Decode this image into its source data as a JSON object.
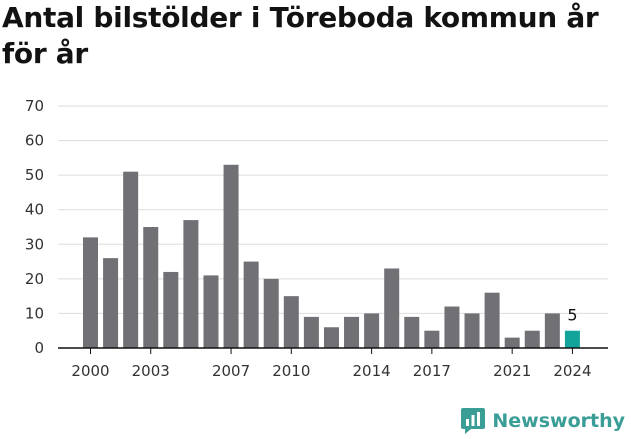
{
  "title": "Antal bilstölder i Töreboda kommun år för år",
  "brand": {
    "name": "Newsworthy",
    "logo_icon": "newsworthy-chart-bubble-icon",
    "color": "#3a9e97"
  },
  "colors": {
    "bar": "#717075",
    "highlight": "#12a39a",
    "grid": "#dddddd",
    "axis": "#121212"
  },
  "chart_data": {
    "type": "bar",
    "title": "Antal bilstölder i Töreboda kommun år för år",
    "xlabel": "",
    "ylabel": "",
    "ylim": [
      0,
      70
    ],
    "yticks": [
      0,
      10,
      20,
      30,
      40,
      50,
      60,
      70
    ],
    "grid": true,
    "categories": [
      2000,
      2001,
      2002,
      2003,
      2004,
      2005,
      2006,
      2007,
      2008,
      2009,
      2010,
      2011,
      2012,
      2013,
      2014,
      2015,
      2016,
      2017,
      2018,
      2019,
      2020,
      2021,
      2022,
      2023,
      2024
    ],
    "values": [
      32,
      26,
      51,
      35,
      22,
      37,
      21,
      53,
      25,
      20,
      15,
      9,
      6,
      9,
      10,
      23,
      9,
      5,
      12,
      10,
      16,
      3,
      5,
      10,
      5
    ],
    "xtick_labels": [
      "2000",
      "2003",
      "2007",
      "2010",
      "2014",
      "2017",
      "2021",
      "2024"
    ],
    "highlight_category": 2024,
    "annotations": [
      {
        "category": 2024,
        "text": "5"
      }
    ]
  }
}
